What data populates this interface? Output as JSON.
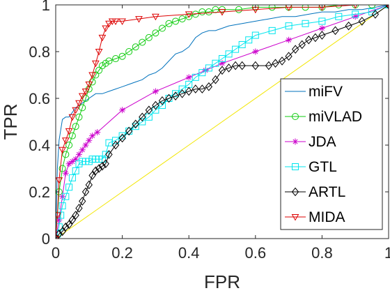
{
  "chart_data": {
    "type": "line",
    "title": "",
    "xlabel": "FPR",
    "ylabel": "TPR",
    "xlim": [
      0,
      1
    ],
    "ylim": [
      0,
      1
    ],
    "xticks": [
      "0",
      "0.2",
      "0.4",
      "0.6",
      "0.8",
      "1"
    ],
    "yticks": [
      "0",
      "0.2",
      "0.4",
      "0.6",
      "0.8",
      "1"
    ],
    "grid": false,
    "legend_position": "lower-right",
    "diagonal_color": "#f2e600",
    "series": [
      {
        "name": "miFV",
        "color": "#0072bd",
        "marker": "none",
        "x": [
          0,
          0.005,
          0.01,
          0.02,
          0.03,
          0.04,
          0.05,
          0.06,
          0.07,
          0.08,
          0.09,
          0.1,
          0.11,
          0.12,
          0.14,
          0.16,
          0.18,
          0.2,
          0.22,
          0.24,
          0.26,
          0.28,
          0.3,
          0.32,
          0.34,
          0.36,
          0.38,
          0.4,
          0.42,
          0.44,
          0.46,
          0.48,
          0.5,
          0.52,
          0.56,
          0.6,
          0.64,
          0.68,
          0.72,
          0.76,
          0.8,
          0.84,
          0.88,
          0.92,
          0.96,
          1.0
        ],
        "y": [
          0,
          0.3,
          0.42,
          0.51,
          0.52,
          0.52,
          0.54,
          0.56,
          0.57,
          0.58,
          0.59,
          0.6,
          0.61,
          0.62,
          0.62,
          0.63,
          0.64,
          0.65,
          0.66,
          0.67,
          0.68,
          0.7,
          0.71,
          0.73,
          0.76,
          0.79,
          0.8,
          0.82,
          0.86,
          0.88,
          0.89,
          0.89,
          0.9,
          0.91,
          0.92,
          0.93,
          0.94,
          0.95,
          0.95,
          0.96,
          0.97,
          0.97,
          0.98,
          0.98,
          0.99,
          1.0
        ]
      },
      {
        "name": "miVLAD",
        "color": "#11cc11",
        "marker": "circle",
        "x": [
          0,
          0.005,
          0.01,
          0.02,
          0.03,
          0.04,
          0.05,
          0.06,
          0.07,
          0.08,
          0.09,
          0.1,
          0.11,
          0.12,
          0.13,
          0.14,
          0.15,
          0.16,
          0.18,
          0.2,
          0.22,
          0.24,
          0.26,
          0.28,
          0.3,
          0.32,
          0.34,
          0.36,
          0.38,
          0.4,
          0.42,
          0.44,
          0.46,
          0.48,
          0.5,
          0.55,
          0.6,
          0.65,
          0.7,
          0.75,
          0.8,
          0.85,
          0.9,
          0.95,
          1.0
        ],
        "y": [
          0,
          0.1,
          0.2,
          0.3,
          0.36,
          0.4,
          0.44,
          0.48,
          0.52,
          0.56,
          0.6,
          0.64,
          0.67,
          0.7,
          0.72,
          0.74,
          0.75,
          0.76,
          0.77,
          0.78,
          0.8,
          0.82,
          0.84,
          0.86,
          0.88,
          0.9,
          0.92,
          0.93,
          0.94,
          0.95,
          0.96,
          0.97,
          0.97,
          0.98,
          0.98,
          0.98,
          0.99,
          0.99,
          0.99,
          0.99,
          0.99,
          1.0,
          1.0,
          1.0,
          1.0
        ]
      },
      {
        "name": "JDA",
        "color": "#cc00cc",
        "marker": "star",
        "x": [
          0,
          0.01,
          0.02,
          0.03,
          0.04,
          0.05,
          0.06,
          0.07,
          0.08,
          0.09,
          0.1,
          0.11,
          0.125,
          0.2,
          0.3,
          0.4,
          0.45,
          0.5,
          0.6,
          0.7,
          0.8,
          0.9,
          1.0
        ],
        "y": [
          0,
          0.08,
          0.18,
          0.28,
          0.32,
          0.33,
          0.34,
          0.36,
          0.38,
          0.4,
          0.42,
          0.44,
          0.455,
          0.55,
          0.63,
          0.69,
          0.72,
          0.75,
          0.8,
          0.85,
          0.9,
          0.95,
          1.0
        ]
      },
      {
        "name": "GTL",
        "color": "#00e5ee",
        "marker": "square",
        "x": [
          0,
          0.005,
          0.01,
          0.015,
          0.02,
          0.03,
          0.04,
          0.05,
          0.06,
          0.07,
          0.08,
          0.09,
          0.1,
          0.11,
          0.12,
          0.13,
          0.14,
          0.15,
          0.16,
          0.18,
          0.2,
          0.22,
          0.24,
          0.26,
          0.28,
          0.3,
          0.32,
          0.34,
          0.36,
          0.38,
          0.4,
          0.42,
          0.44,
          0.46,
          0.48,
          0.5,
          0.52,
          0.54,
          0.56,
          0.58,
          0.6,
          0.65,
          0.7,
          0.75,
          0.8,
          0.85,
          0.9,
          0.95,
          1.0
        ],
        "y": [
          0,
          0.02,
          0.05,
          0.1,
          0.14,
          0.18,
          0.22,
          0.26,
          0.29,
          0.32,
          0.33,
          0.33,
          0.33,
          0.34,
          0.34,
          0.34,
          0.34,
          0.36,
          0.41,
          0.42,
          0.44,
          0.46,
          0.48,
          0.5,
          0.52,
          0.55,
          0.57,
          0.6,
          0.62,
          0.64,
          0.66,
          0.69,
          0.71,
          0.73,
          0.75,
          0.77,
          0.79,
          0.81,
          0.83,
          0.85,
          0.87,
          0.89,
          0.91,
          0.92,
          0.93,
          0.95,
          0.96,
          0.97,
          1.0
        ]
      },
      {
        "name": "ARTL",
        "color": "#000000",
        "marker": "diamond",
        "x": [
          0,
          0.01,
          0.02,
          0.03,
          0.04,
          0.05,
          0.06,
          0.07,
          0.08,
          0.09,
          0.1,
          0.11,
          0.12,
          0.13,
          0.14,
          0.15,
          0.16,
          0.18,
          0.2,
          0.22,
          0.24,
          0.26,
          0.28,
          0.3,
          0.32,
          0.34,
          0.36,
          0.38,
          0.4,
          0.42,
          0.44,
          0.46,
          0.48,
          0.5,
          0.52,
          0.54,
          0.56,
          0.6,
          0.64,
          0.66,
          0.68,
          0.7,
          0.72,
          0.74,
          0.76,
          0.78,
          0.8,
          0.84,
          0.88,
          0.92,
          0.96,
          1.0
        ],
        "y": [
          0,
          0.02,
          0.03,
          0.05,
          0.06,
          0.08,
          0.1,
          0.13,
          0.16,
          0.2,
          0.23,
          0.27,
          0.29,
          0.3,
          0.31,
          0.32,
          0.36,
          0.4,
          0.43,
          0.46,
          0.49,
          0.52,
          0.55,
          0.57,
          0.59,
          0.6,
          0.61,
          0.62,
          0.63,
          0.64,
          0.64,
          0.65,
          0.68,
          0.72,
          0.73,
          0.74,
          0.74,
          0.74,
          0.74,
          0.75,
          0.76,
          0.78,
          0.81,
          0.83,
          0.85,
          0.86,
          0.87,
          0.89,
          0.91,
          0.93,
          0.96,
          1.0
        ]
      },
      {
        "name": "MIDA",
        "color": "#dd0000",
        "marker": "triangle-down",
        "x": [
          0,
          0.005,
          0.01,
          0.02,
          0.03,
          0.04,
          0.05,
          0.06,
          0.07,
          0.08,
          0.09,
          0.1,
          0.11,
          0.12,
          0.13,
          0.14,
          0.15,
          0.16,
          0.17,
          0.18,
          0.2,
          0.25,
          0.3,
          0.4,
          0.5,
          0.6,
          0.7,
          0.8,
          0.9,
          1.0
        ],
        "y": [
          0,
          0.1,
          0.25,
          0.38,
          0.42,
          0.46,
          0.52,
          0.55,
          0.58,
          0.61,
          0.63,
          0.66,
          0.7,
          0.75,
          0.8,
          0.86,
          0.9,
          0.92,
          0.93,
          0.93,
          0.93,
          0.94,
          0.95,
          0.96,
          0.97,
          0.98,
          0.99,
          0.99,
          1.0,
          1.0
        ]
      }
    ]
  }
}
